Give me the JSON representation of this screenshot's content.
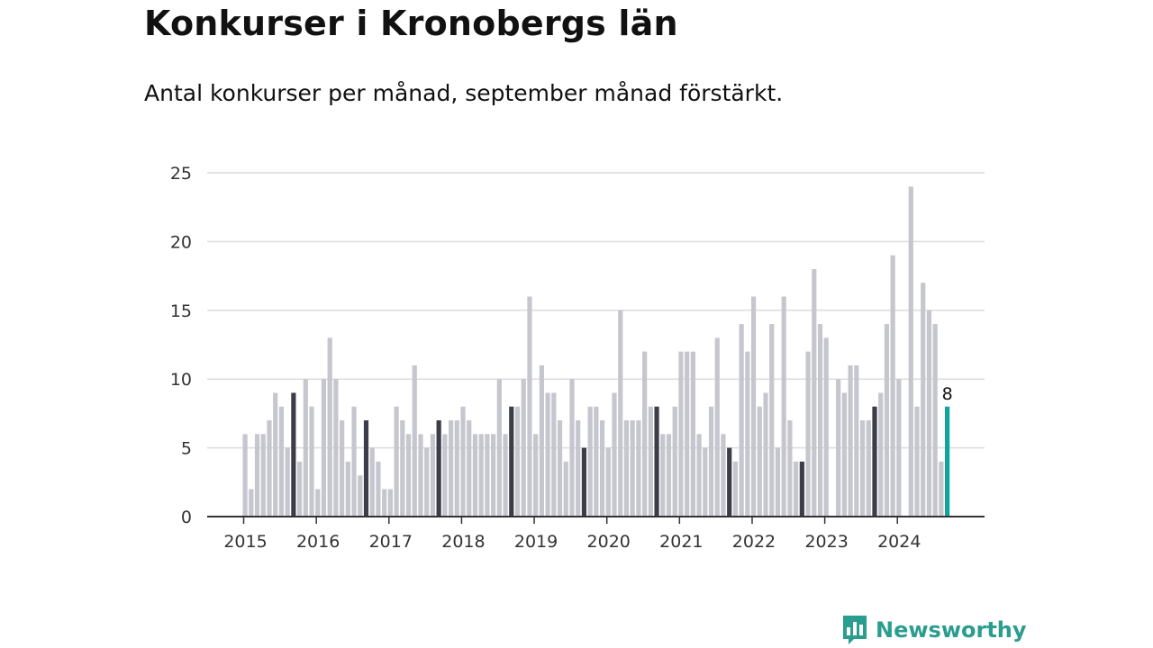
{
  "title": "Konkurser i Kronobergs län",
  "subtitle": "Antal konkurser per månad, september månad förstärkt.",
  "brand": {
    "name": "Newsworthy",
    "icon": "bar-chart-speech-bubble-icon",
    "color": "#2a9d8f"
  },
  "colors": {
    "bar": "#c6c6cf",
    "highlight": "#3d3d4a",
    "latest": "#12a39a",
    "grid": "#dcdcdc",
    "axis": "#333333"
  },
  "chart_data": {
    "type": "bar",
    "start_month": "2015-01",
    "end_month": "2024-09",
    "highlight_month": "september",
    "values": [
      6,
      2,
      6,
      6,
      7,
      9,
      8,
      5,
      9,
      4,
      10,
      8,
      2,
      10,
      13,
      10,
      7,
      4,
      8,
      3,
      7,
      5,
      4,
      2,
      2,
      8,
      7,
      6,
      11,
      6,
      5,
      6,
      7,
      6,
      7,
      7,
      8,
      7,
      6,
      6,
      6,
      6,
      10,
      6,
      8,
      8,
      10,
      16,
      6,
      11,
      9,
      9,
      7,
      4,
      10,
      7,
      5,
      8,
      8,
      7,
      5,
      9,
      15,
      7,
      7,
      7,
      12,
      8,
      8,
      6,
      6,
      8,
      12,
      12,
      12,
      6,
      5,
      8,
      13,
      6,
      5,
      4,
      14,
      12,
      16,
      8,
      9,
      14,
      5,
      16,
      7,
      4,
      4,
      12,
      18,
      14,
      13,
      0,
      10,
      9,
      11,
      11,
      7,
      7,
      8,
      9,
      14,
      19,
      10,
      0,
      24,
      8,
      17,
      15,
      14,
      4,
      8
    ],
    "x_tick_labels": [
      "2015",
      "2016",
      "2017",
      "2018",
      "2019",
      "2020",
      "2021",
      "2022",
      "2023",
      "2024"
    ],
    "y_ticks": [
      0,
      5,
      10,
      15,
      20,
      25
    ],
    "ylim": [
      0,
      25
    ],
    "annotations": [
      {
        "month": "2024-09",
        "text": "8"
      }
    ],
    "grid": true,
    "legend": "none"
  }
}
